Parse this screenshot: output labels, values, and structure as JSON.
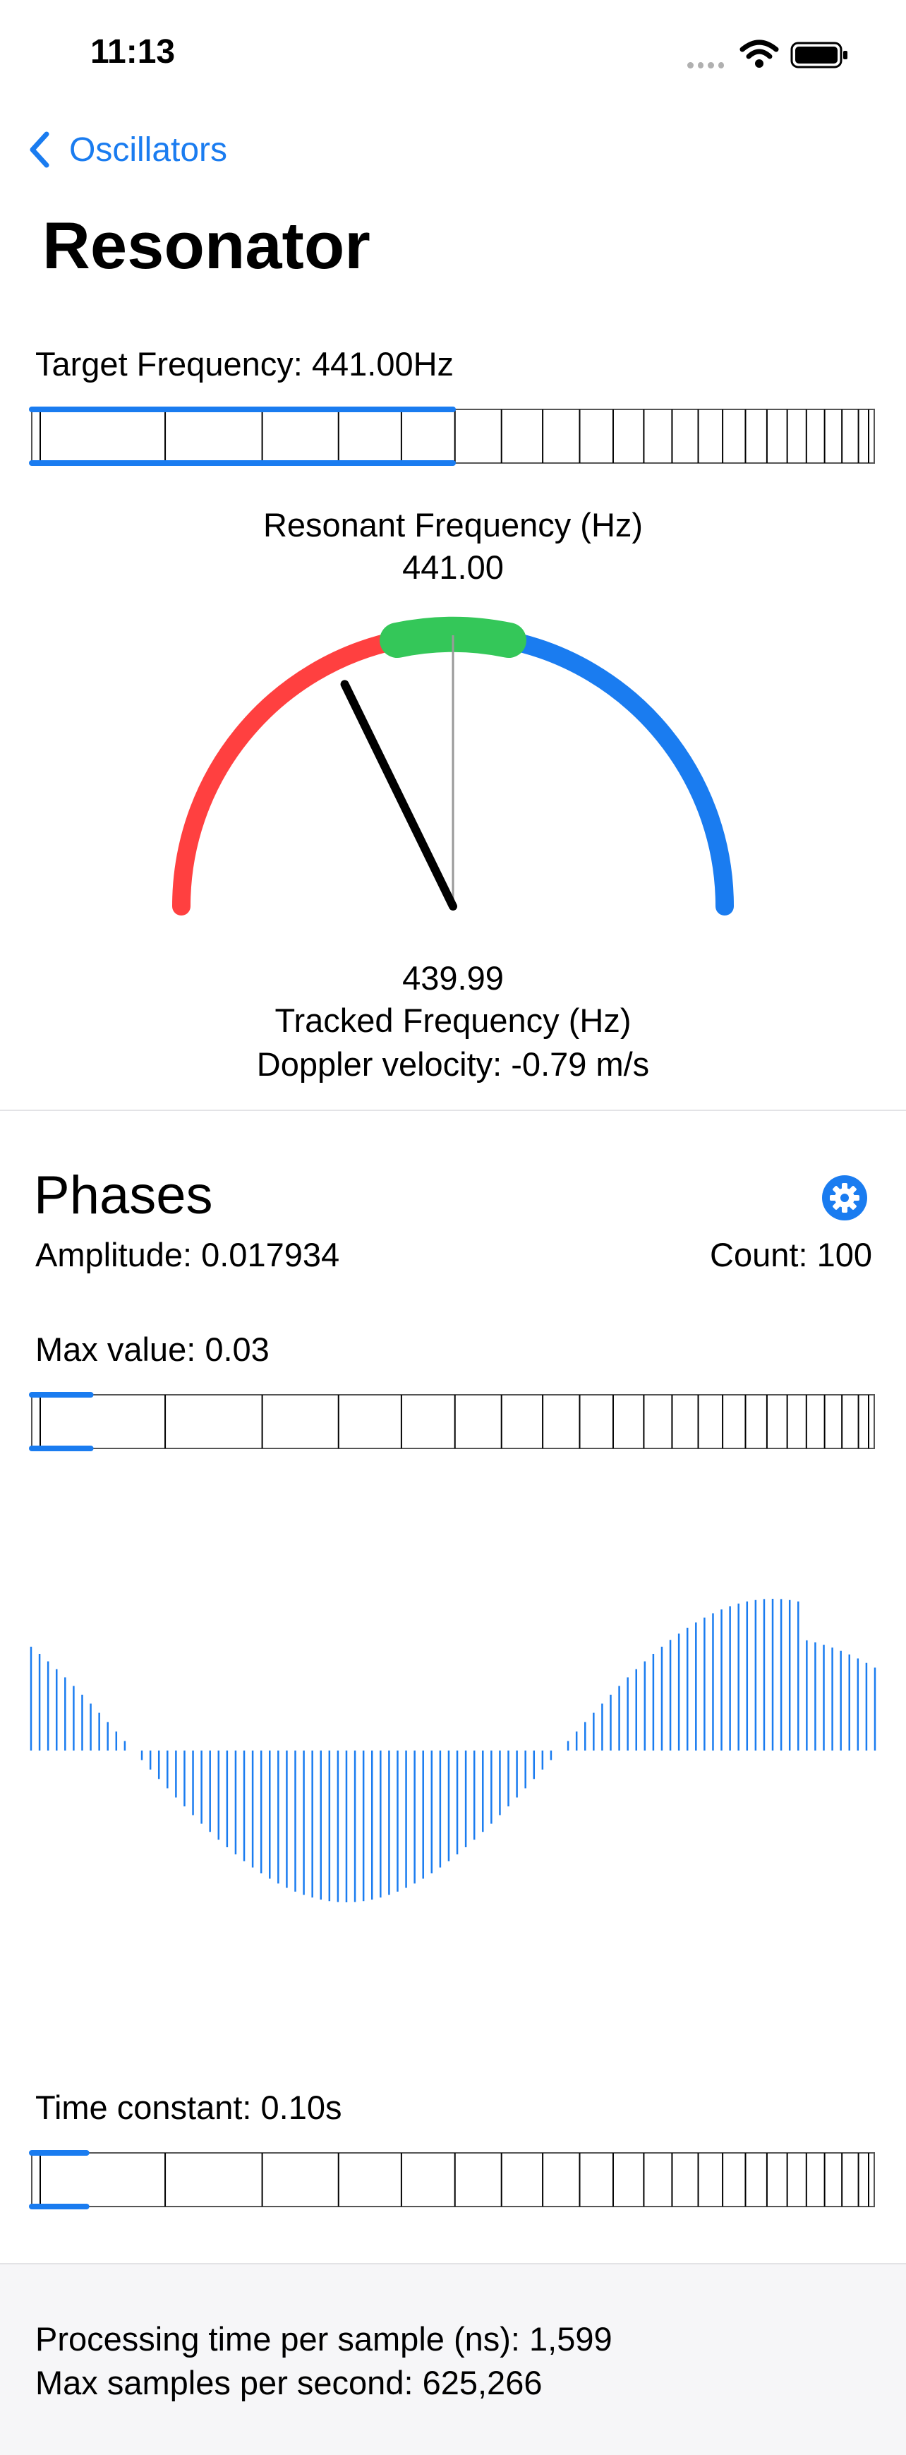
{
  "status_bar": {
    "time": "11:13",
    "wifi_icon": "wifi-icon",
    "battery_icon": "battery-icon"
  },
  "nav": {
    "back_label": "Oscillators",
    "title": "Resonator"
  },
  "target": {
    "label": "Target Frequency: 441.00Hz",
    "slider_fraction": 0.5
  },
  "gauge": {
    "title": "Resonant Frequency (Hz)",
    "resonant_value": "441.00",
    "tracked_value": "439.99",
    "tracked_label": "Tracked Frequency (Hz)",
    "doppler": "Doppler velocity: -0.79 m/s",
    "needle_angle_deg": -26,
    "colors": {
      "low": "#ff4040",
      "in_tune": "#34c759",
      "high": "#1a7cf0"
    }
  },
  "phases": {
    "title": "Phases",
    "settings_icon": "gear-icon",
    "amplitude": "Amplitude: 0.017934",
    "count": "Count: 100",
    "max_label": "Max value: 0.03",
    "max_slider_fraction": 0.07,
    "time_constant": "Time constant: 0.10s",
    "time_slider_fraction": 0.065,
    "bar_count": 100,
    "bar_color": "#1a7cf0"
  },
  "stats": {
    "processing": "Processing time per sample (ns): 1,599",
    "max_samples": "Max samples per second: 625,266"
  }
}
